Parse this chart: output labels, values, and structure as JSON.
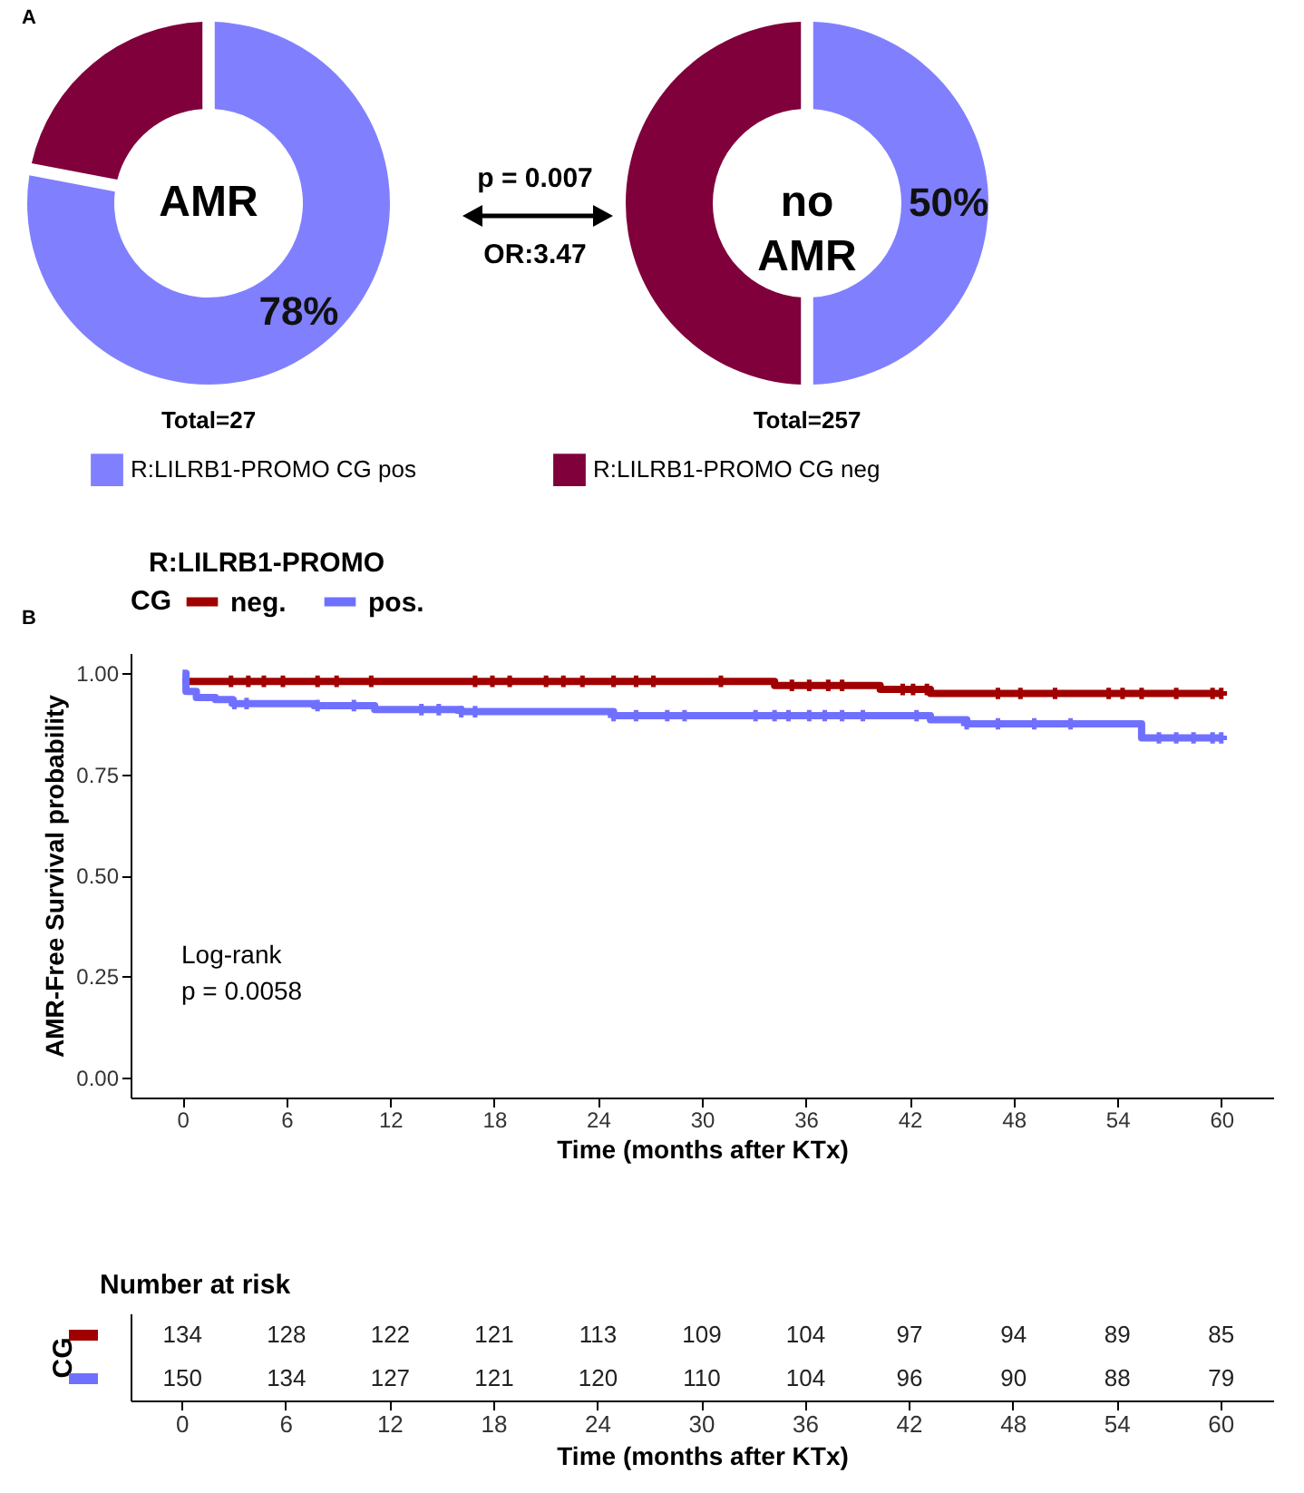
{
  "chart_data": [
    {
      "type": "donut",
      "categories": [
        "R:LILRB1-PROMO CG pos",
        "R:LILRB1-PROMO CG neg"
      ],
      "values": [
        78,
        22
      ],
      "colors": [
        "#8080ff",
        "#7f003a"
      ],
      "value_labels": [
        "78%",
        null
      ],
      "annotations": [
        "A",
        "AMR",
        "p = 0.007",
        "OR:3.47",
        "Total=27"
      ],
      "legend": "bottom"
    },
    {
      "type": "donut",
      "categories": [
        null,
        null
      ],
      "values": [
        50,
        50
      ],
      "colors": [
        "#8080ff",
        "#7f003a"
      ],
      "value_labels": [
        "50%",
        null
      ],
      "annotations": [
        "no AMR",
        "Total=257"
      ]
    },
    {
      "type": "step",
      "title": "R:LILRB1-PROMO",
      "annotations": [
        "B",
        "Log-rank\np = 0.0058"
      ],
      "xlabel": "Time (months after KTx)",
      "ylabel": "AMR-Free Survival probability",
      "legend_title": "CG",
      "legend": "top",
      "xlim": [
        -3,
        63
      ],
      "xticks": [
        0,
        6,
        12,
        18,
        24,
        30,
        36,
        42,
        48,
        54,
        60
      ],
      "ylim": [
        -0.05,
        1.05
      ],
      "yticks": [
        {
          "value": 0,
          "label": "0.00"
        },
        {
          "value": 0.25,
          "label": "0.25"
        },
        {
          "value": 0.5,
          "label": "0.50"
        },
        {
          "value": 0.75,
          "label": "0.75"
        },
        {
          "value": 1,
          "label": "1.00"
        }
      ],
      "series": [
        {
          "name": "neg.",
          "color": "#a00000",
          "x": [
            0,
            34.2,
            40.3,
            43.2,
            60
          ],
          "values": [
            0.98,
            0.97,
            0.96,
            0.95,
            0.95
          ]
        },
        {
          "name": "pos.",
          "color": "#7070ff",
          "x": [
            0,
            0.2,
            0.8,
            1.9,
            2.9,
            7.6,
            11.1,
            16.1,
            24.9,
            43.2,
            45.3,
            55.4,
            60
          ],
          "values": [
            1.0,
            0.955,
            0.94,
            0.935,
            0.925,
            0.92,
            0.91,
            0.905,
            0.895,
            0.885,
            0.875,
            0.84,
            0.84
          ]
        },
        {
          "type": "scatter",
          "marker": "cross",
          "color": "#a00000",
          "x": [
            2.8,
            3.8,
            4.7,
            5.8,
            7.8,
            8.9,
            10.9,
            16.9,
            17.9,
            18.9,
            21.0,
            22.0,
            23.1,
            24.9,
            26.2,
            27.2,
            31.1,
            35.2,
            36.2,
            37.3,
            38.1,
            41.6,
            42.2,
            43.0,
            47.1,
            48.4,
            50.4,
            53.5,
            54.3,
            55.4,
            57.4,
            59.5,
            60
          ],
          "values": [
            0.98,
            0.98,
            0.98,
            0.98,
            0.98,
            0.98,
            0.98,
            0.98,
            0.98,
            0.98,
            0.98,
            0.98,
            0.98,
            0.98,
            0.98,
            0.98,
            0.98,
            0.97,
            0.97,
            0.97,
            0.97,
            0.96,
            0.96,
            0.96,
            0.95,
            0.95,
            0.95,
            0.95,
            0.95,
            0.95,
            0.95,
            0.95,
            0.95
          ]
        },
        {
          "type": "scatter",
          "marker": "cross",
          "color": "#7070ff",
          "x": [
            3.0,
            3.7,
            7.8,
            9.9,
            13.8,
            14.8,
            16.1,
            16.9,
            24.9,
            26.2,
            28.0,
            29.0,
            33.1,
            34.2,
            35.0,
            36.2,
            37.1,
            38.1,
            39.3,
            42.4,
            45.3,
            47.1,
            49.2,
            51.3,
            56.4,
            57.4,
            58.4,
            59.5,
            60
          ],
          "values": [
            0.925,
            0.925,
            0.92,
            0.92,
            0.91,
            0.91,
            0.905,
            0.905,
            0.895,
            0.895,
            0.895,
            0.895,
            0.895,
            0.895,
            0.895,
            0.895,
            0.895,
            0.895,
            0.895,
            0.895,
            0.875,
            0.875,
            0.875,
            0.875,
            0.84,
            0.84,
            0.84,
            0.84,
            0.84
          ]
        }
      ]
    },
    {
      "type": "heatmap",
      "title": "Number at risk",
      "xlabel": "Time (months after KTx)",
      "ylabel": "CG",
      "categories": [
        "0",
        "6",
        "12",
        "18",
        "24",
        "30",
        "36",
        "42",
        "48",
        "54",
        "60"
      ],
      "y_categories": [
        null,
        null
      ],
      "data_labels": true,
      "cells": [
        [
          134,
          128,
          122,
          121,
          113,
          109,
          104,
          97,
          94,
          89,
          85
        ],
        [
          150,
          134,
          127,
          121,
          120,
          110,
          104,
          96,
          90,
          88,
          79
        ]
      ]
    }
  ]
}
